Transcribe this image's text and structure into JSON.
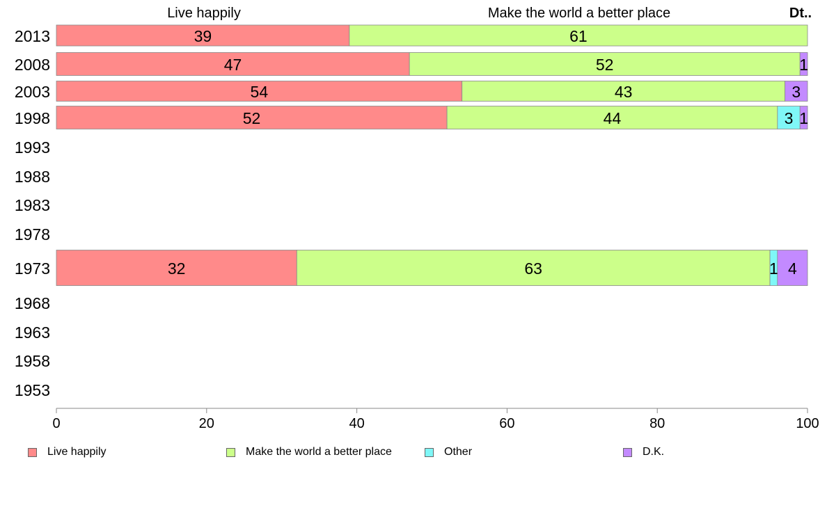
{
  "chart_data": {
    "type": "bar",
    "orientation": "horizontal",
    "stacked": true,
    "categories": [
      "2013",
      "2008",
      "2003",
      "1998",
      "1993",
      "1988",
      "1983",
      "1978",
      "1973",
      "1968",
      "1963",
      "1958",
      "1953"
    ],
    "series": [
      {
        "name": "Live happily",
        "values": [
          39,
          47,
          54,
          52,
          null,
          null,
          null,
          null,
          32,
          null,
          null,
          null,
          null
        ],
        "color": "#ff8a8a"
      },
      {
        "name": "Make the world a better place",
        "values": [
          61,
          52,
          43,
          44,
          null,
          null,
          null,
          null,
          63,
          null,
          null,
          null,
          null
        ],
        "color": "#ccff8a"
      },
      {
        "name": "Other",
        "values": [
          0,
          0,
          0,
          3,
          null,
          null,
          null,
          null,
          1,
          null,
          null,
          null,
          null
        ],
        "color": "#7ff7f7"
      },
      {
        "name": "D.K.",
        "values": [
          0,
          1,
          3,
          1,
          null,
          null,
          null,
          null,
          4,
          null,
          null,
          null,
          null
        ],
        "color": "#c38aff"
      }
    ],
    "top_labels": [
      "Live happily",
      "Make the world a better place",
      "Dt.."
    ],
    "xlim": [
      0,
      100
    ],
    "xticks": [
      0,
      20,
      40,
      60,
      80,
      100
    ],
    "legend_position": "bottom",
    "grid": false
  }
}
